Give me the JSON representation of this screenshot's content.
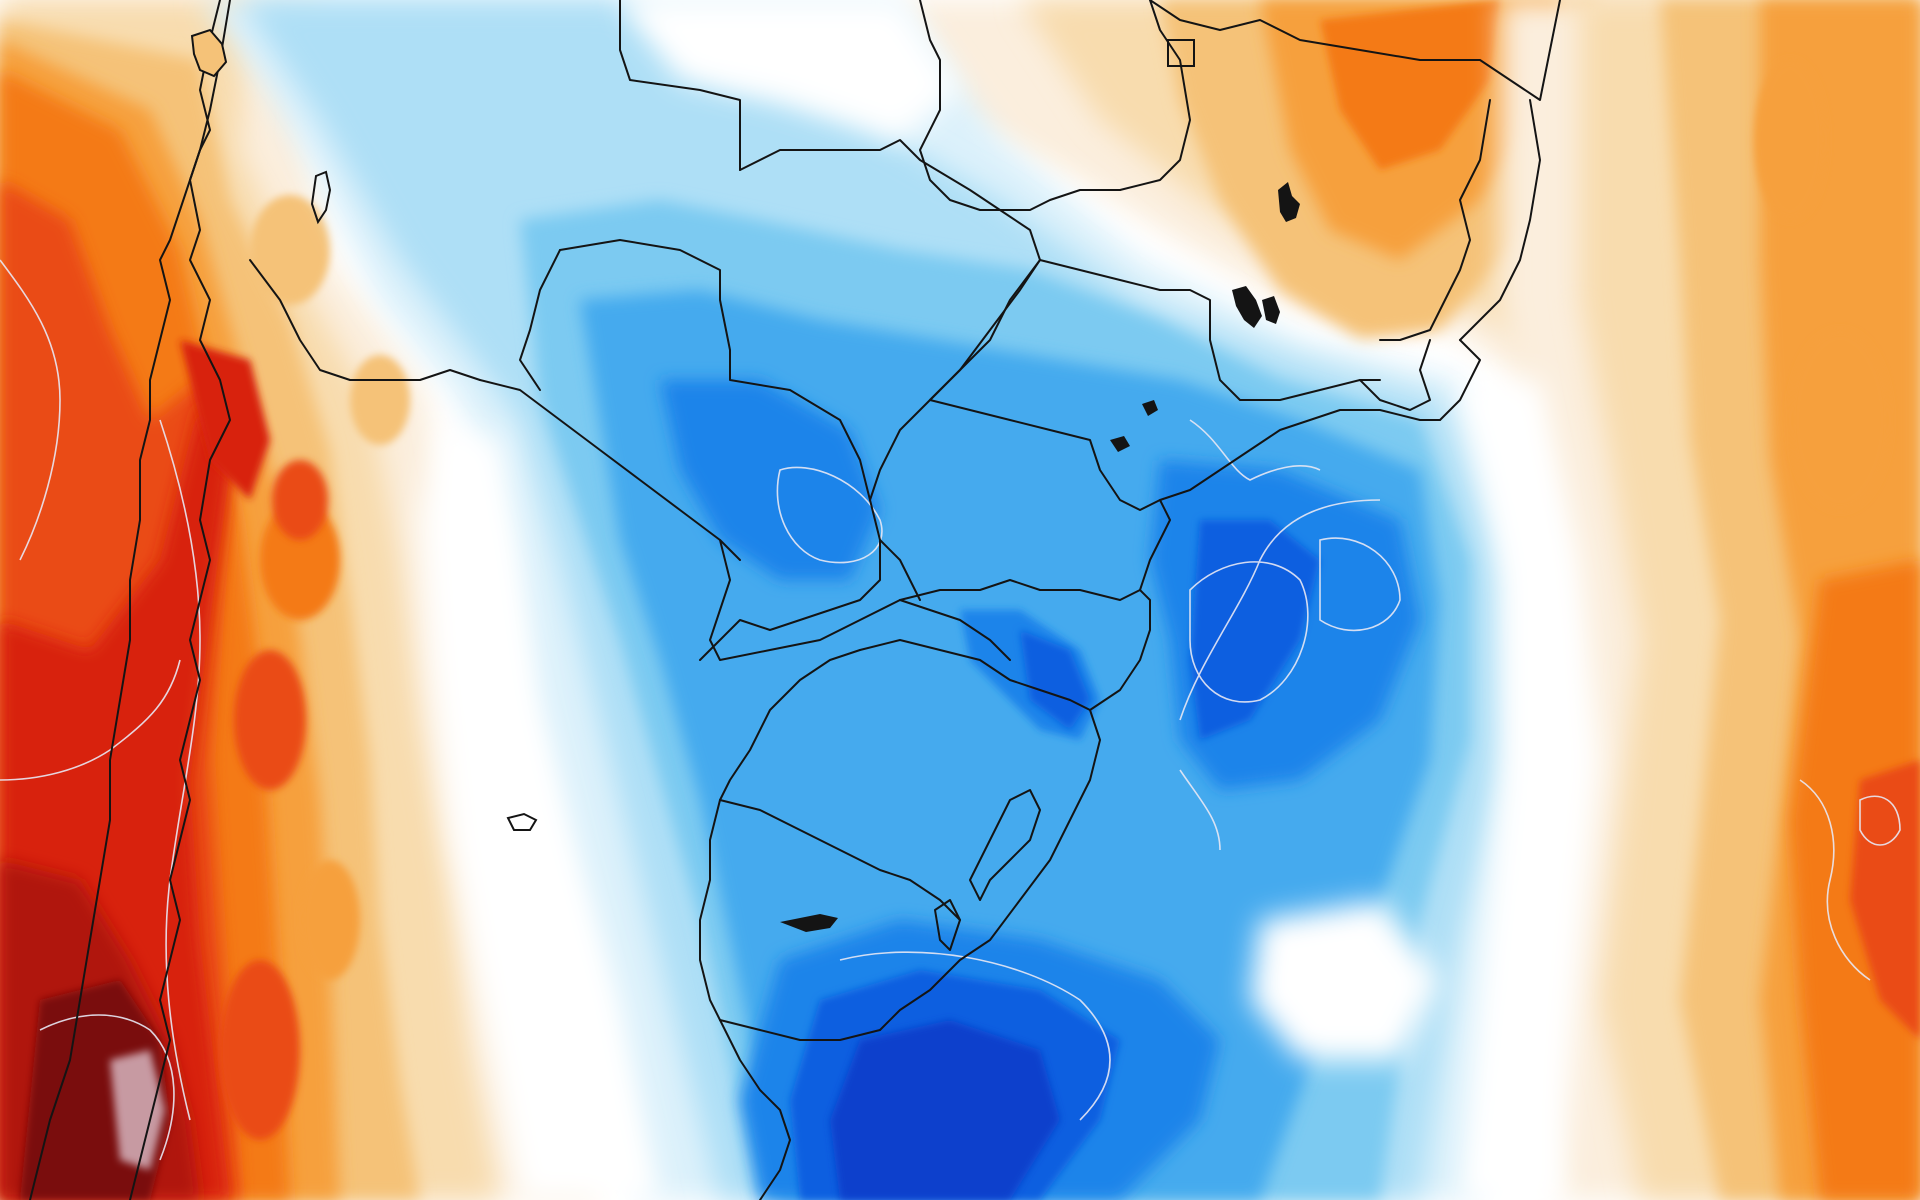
{
  "map": {
    "type": "temperature-anomaly-contour-map",
    "region": "southern-south-america",
    "has_text_labels": false,
    "palette": {
      "dark_red": "#7a0d10",
      "red": "#d8200f",
      "red_orange": "#ea4b12",
      "orange": "#f47a17",
      "light_orange": "#f6a03c",
      "tan": "#f5c278",
      "pale_tan": "#f8dcae",
      "cream": "#fbeedd",
      "neutral": "#ffffff",
      "pale_blue": "#dcf1fb",
      "light_blue": "#aedff6",
      "sky_blue": "#7ccaf1",
      "blue": "#45aaee",
      "mid_blue": "#1f84ea",
      "royal_blue": "#0c5fe0",
      "deep_blue": "#0a3fcc",
      "border": "#141414",
      "contour": "#e8e8f4",
      "lake": "#141414"
    },
    "layers": [
      "warm-anomaly-west",
      "warm-anomaly-northeast",
      "warm-anomaly-east-ocean",
      "cold-anomaly-core",
      "country-and-state-borders",
      "contour-lines",
      "lakes"
    ]
  }
}
